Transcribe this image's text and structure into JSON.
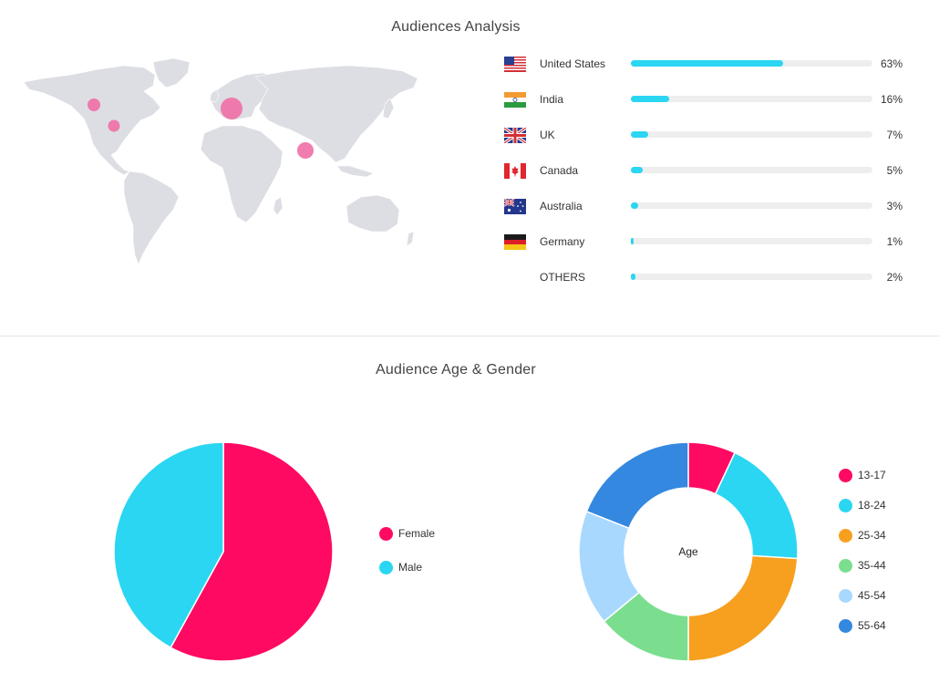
{
  "audience_analysis": {
    "title": "Audiences Analysis",
    "countries": [
      {
        "name": "United States",
        "percent_label": "63%",
        "value": 63,
        "flag_icon": "us-flag-icon"
      },
      {
        "name": "India",
        "percent_label": "16%",
        "value": 16,
        "flag_icon": "india-flag-icon"
      },
      {
        "name": "UK",
        "percent_label": "7%",
        "value": 7,
        "flag_icon": "uk-flag-icon"
      },
      {
        "name": "Canada",
        "percent_label": "5%",
        "value": 5,
        "flag_icon": "canada-flag-icon"
      },
      {
        "name": "Australia",
        "percent_label": "3%",
        "value": 3,
        "flag_icon": "australia-flag-icon"
      },
      {
        "name": "Germany",
        "percent_label": "1%",
        "value": 1,
        "flag_icon": "germany-flag-icon"
      },
      {
        "name": "OTHERS",
        "percent_label": "2%",
        "value": 2,
        "flag_icon": ""
      }
    ],
    "bar_color": "#2bd6f2",
    "map_marker_color": "#ef6fa6",
    "map_land_color": "#dcdee3"
  },
  "age_gender": {
    "title": "Audience Age & Gender"
  },
  "chart_data": [
    {
      "type": "pie",
      "title": "",
      "categories": [
        "Female",
        "Male"
      ],
      "values": [
        58,
        42
      ],
      "colors": [
        "#ff0a63",
        "#2bd6f2"
      ],
      "legend": "right"
    },
    {
      "type": "pie",
      "variant": "donut",
      "center_label": "Age",
      "categories": [
        "13-17",
        "18-24",
        "25-34",
        "35-44",
        "45-54",
        "55-64"
      ],
      "values": [
        7,
        19,
        24,
        14,
        17,
        19
      ],
      "colors": [
        "#ff0a63",
        "#2bd6f2",
        "#f7a01f",
        "#7bde8f",
        "#a9d8ff",
        "#3488e0"
      ],
      "legend": "right"
    }
  ]
}
